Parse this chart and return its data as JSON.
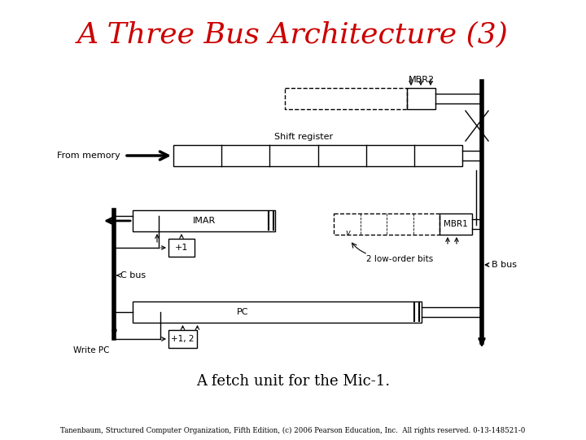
{
  "title": "A Three Bus Architecture (3)",
  "subtitle": "A fetch unit for the Mic-1.",
  "footer": "Tanenbaum, Structured Computer Organization, Fifth Edition, (c) 2006 Pearson Education, Inc.  All rights reserved. 0-13-148521-0",
  "title_color": "#cc0000",
  "bg_color": "#ffffff"
}
